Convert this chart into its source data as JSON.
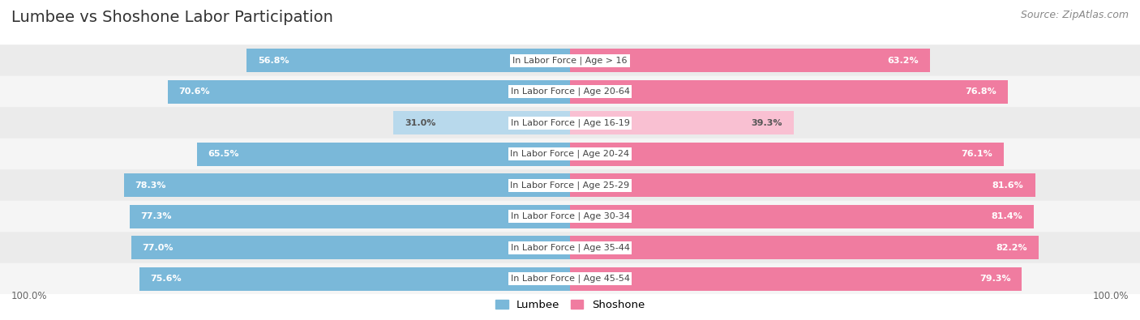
{
  "title": "Lumbee vs Shoshone Labor Participation",
  "source": "Source: ZipAtlas.com",
  "categories": [
    "In Labor Force | Age > 16",
    "In Labor Force | Age 20-64",
    "In Labor Force | Age 16-19",
    "In Labor Force | Age 20-24",
    "In Labor Force | Age 25-29",
    "In Labor Force | Age 30-34",
    "In Labor Force | Age 35-44",
    "In Labor Force | Age 45-54"
  ],
  "lumbee_values": [
    56.8,
    70.6,
    31.0,
    65.5,
    78.3,
    77.3,
    77.0,
    75.6
  ],
  "shoshone_values": [
    63.2,
    76.8,
    39.3,
    76.1,
    81.6,
    81.4,
    82.2,
    79.3
  ],
  "lumbee_color": "#7ab8d9",
  "lumbee_color_light": "#b8d9ec",
  "shoshone_color": "#f07ca0",
  "shoshone_color_light": "#f9c0d2",
  "row_bg_even": "#ebebeb",
  "row_bg_odd": "#f5f5f5",
  "label_white": "#ffffff",
  "label_dark": "#555555",
  "center_label_color": "#444444",
  "max_value": 100.0,
  "legend_lumbee": "Lumbee",
  "legend_shoshone": "Shoshone",
  "background_color": "#ffffff",
  "title_fontsize": 14,
  "source_fontsize": 9,
  "value_fontsize": 8,
  "cat_fontsize": 8
}
